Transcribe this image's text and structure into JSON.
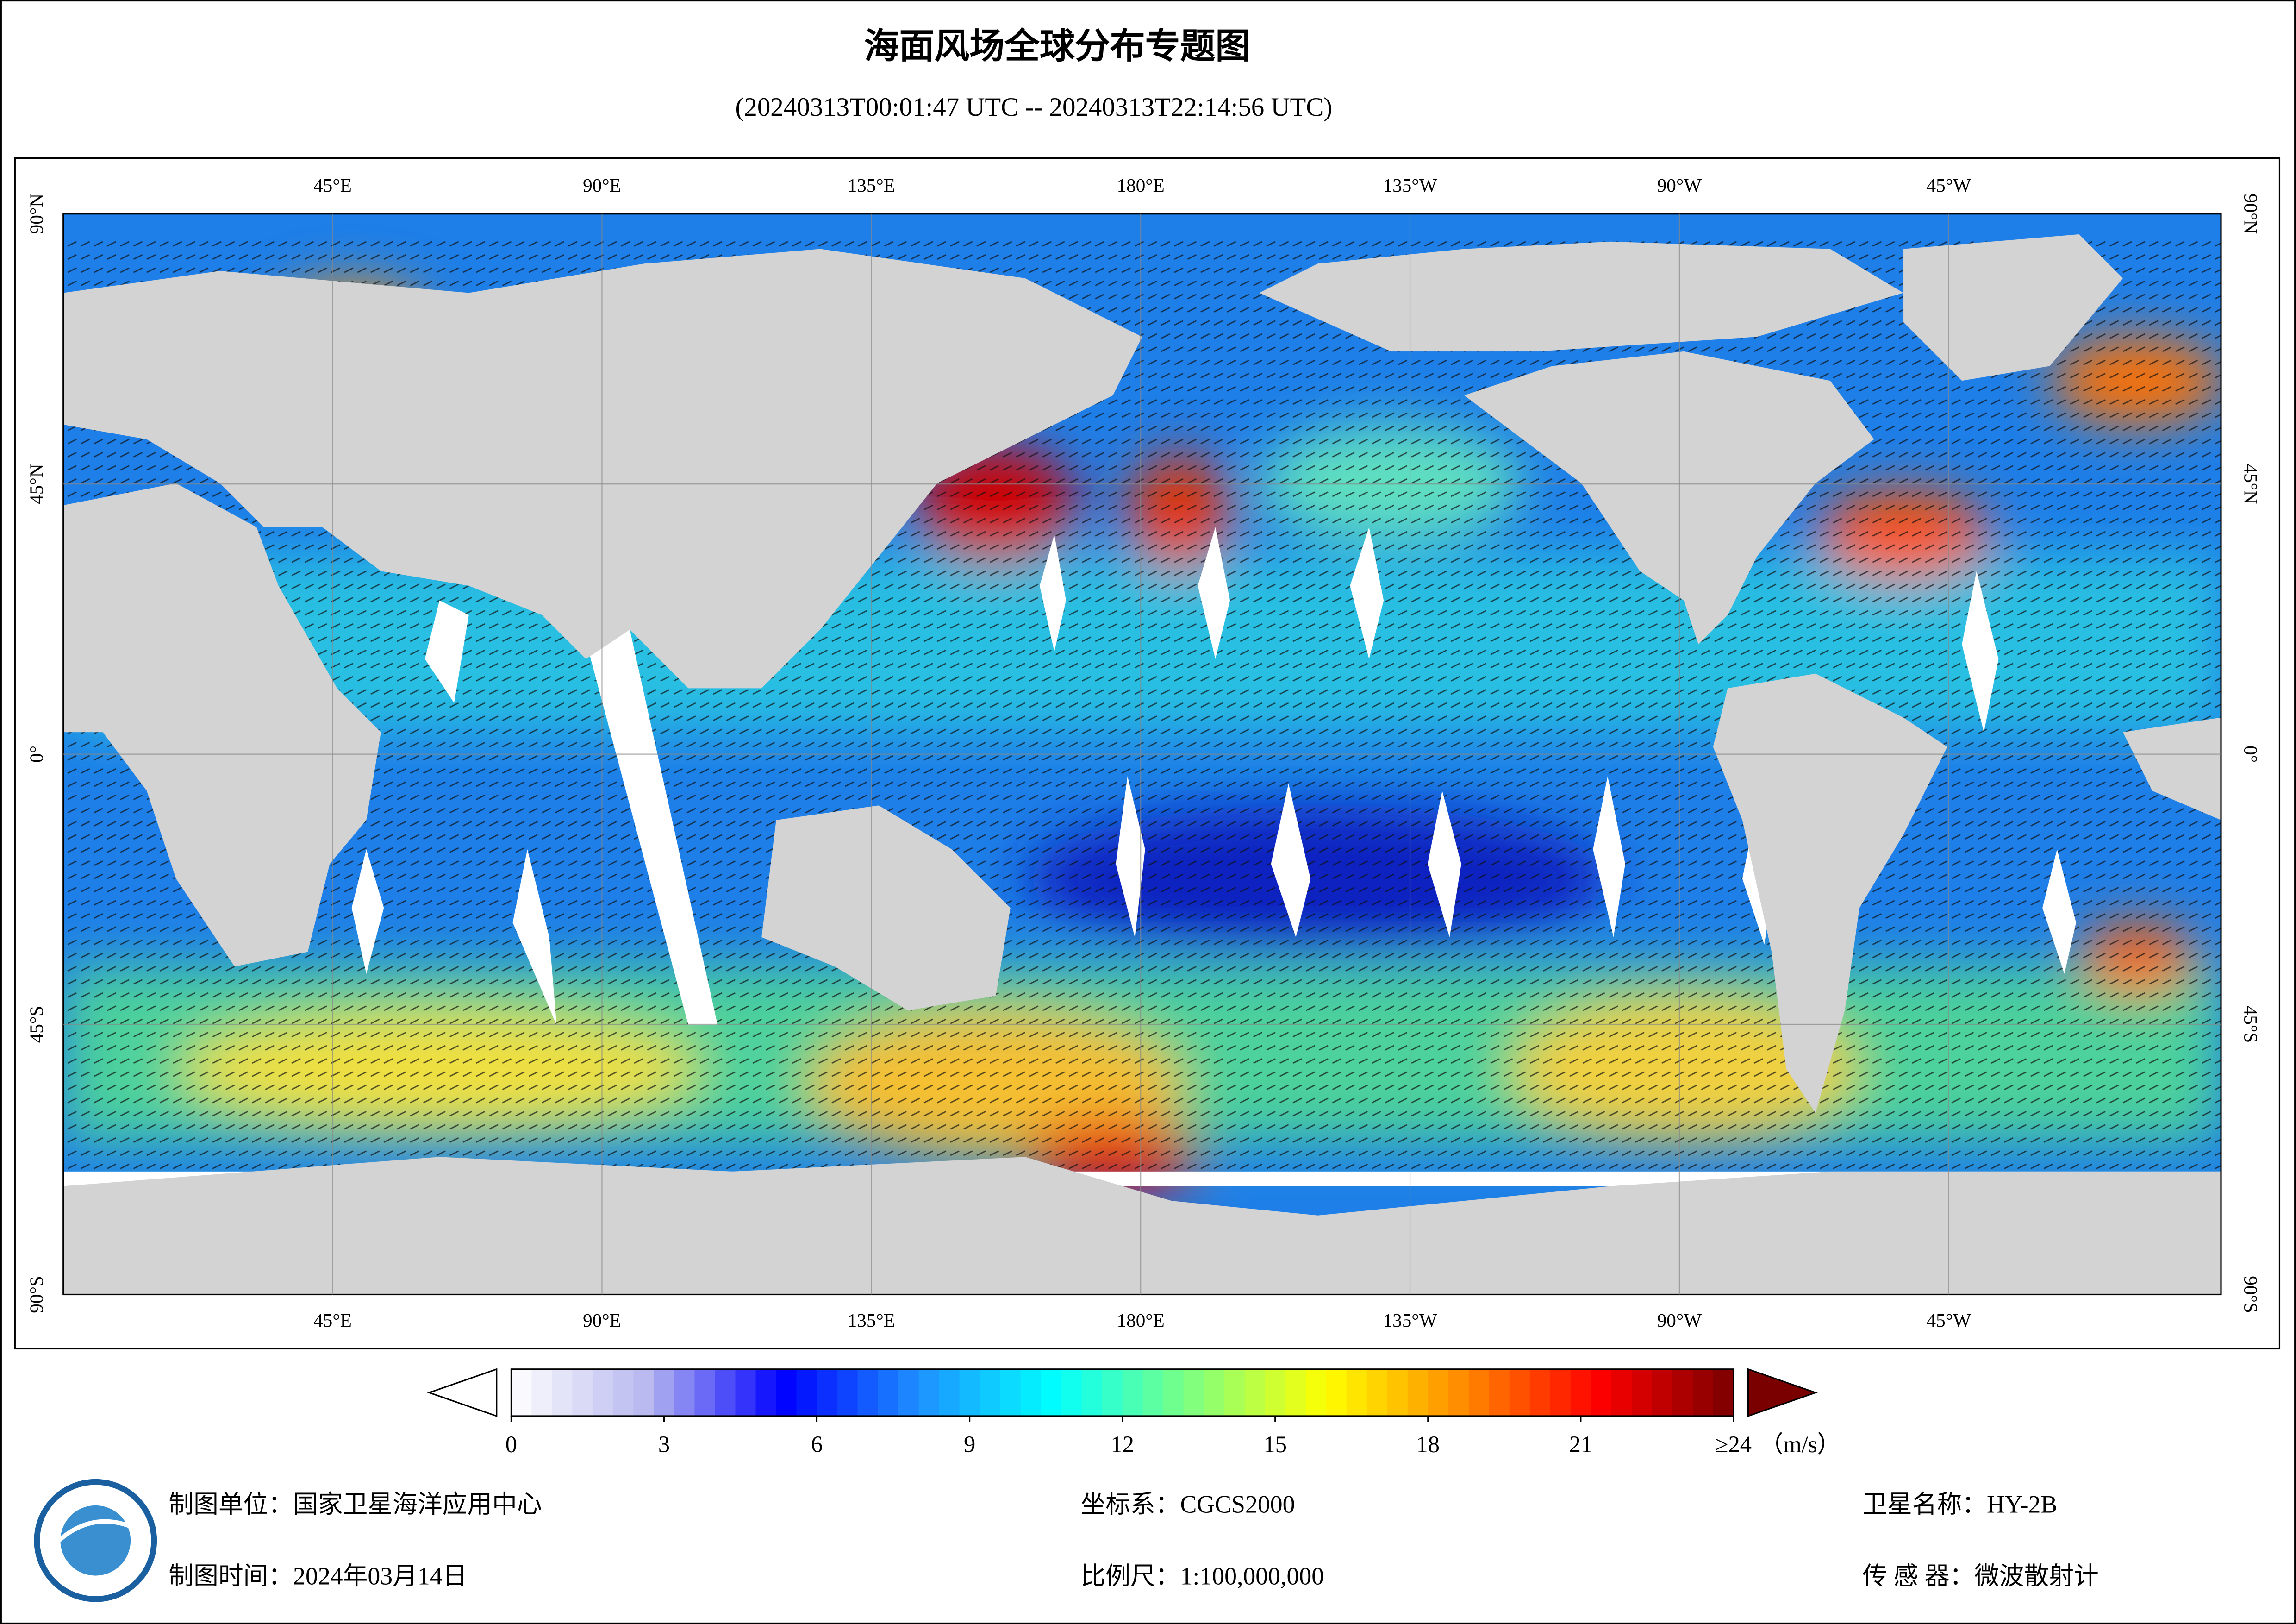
{
  "header": {
    "title": "海面风场全球分布专题图",
    "subtitle": "(20240313T00:01:47 UTC -- 20240313T22:14:56 UTC)"
  },
  "map": {
    "lon_labels": [
      "45°E",
      "90°E",
      "135°E",
      "180°E",
      "135°W",
      "90°W",
      "45°W"
    ],
    "lat_labels": [
      "90°N",
      "45°N",
      "0°",
      "45°S",
      "90°S"
    ]
  },
  "colorbar": {
    "min": 0,
    "max": 24,
    "unit": "（m/s）",
    "ticks": [
      0,
      3,
      6,
      9,
      12,
      15,
      18,
      21,
      {
        "value": 24,
        "label": "≥24"
      }
    ],
    "colors": [
      "#ffffff",
      "#b8b8f0",
      "#0000ff",
      "#1e90ff",
      "#00ffff",
      "#7fff7f",
      "#ffff00",
      "#ff8c00",
      "#ff0000",
      "#7a0000"
    ]
  },
  "footer": {
    "unit": "制图单位：国家卫星海洋应用中心",
    "date": "制图时间：2024年03月14日",
    "crs": "坐标系：CGCS2000",
    "scale": "比例尺：1:100,000,000",
    "satellite": "卫星名称：HY-2B",
    "sensor": "传 感 器：微波散射计"
  }
}
